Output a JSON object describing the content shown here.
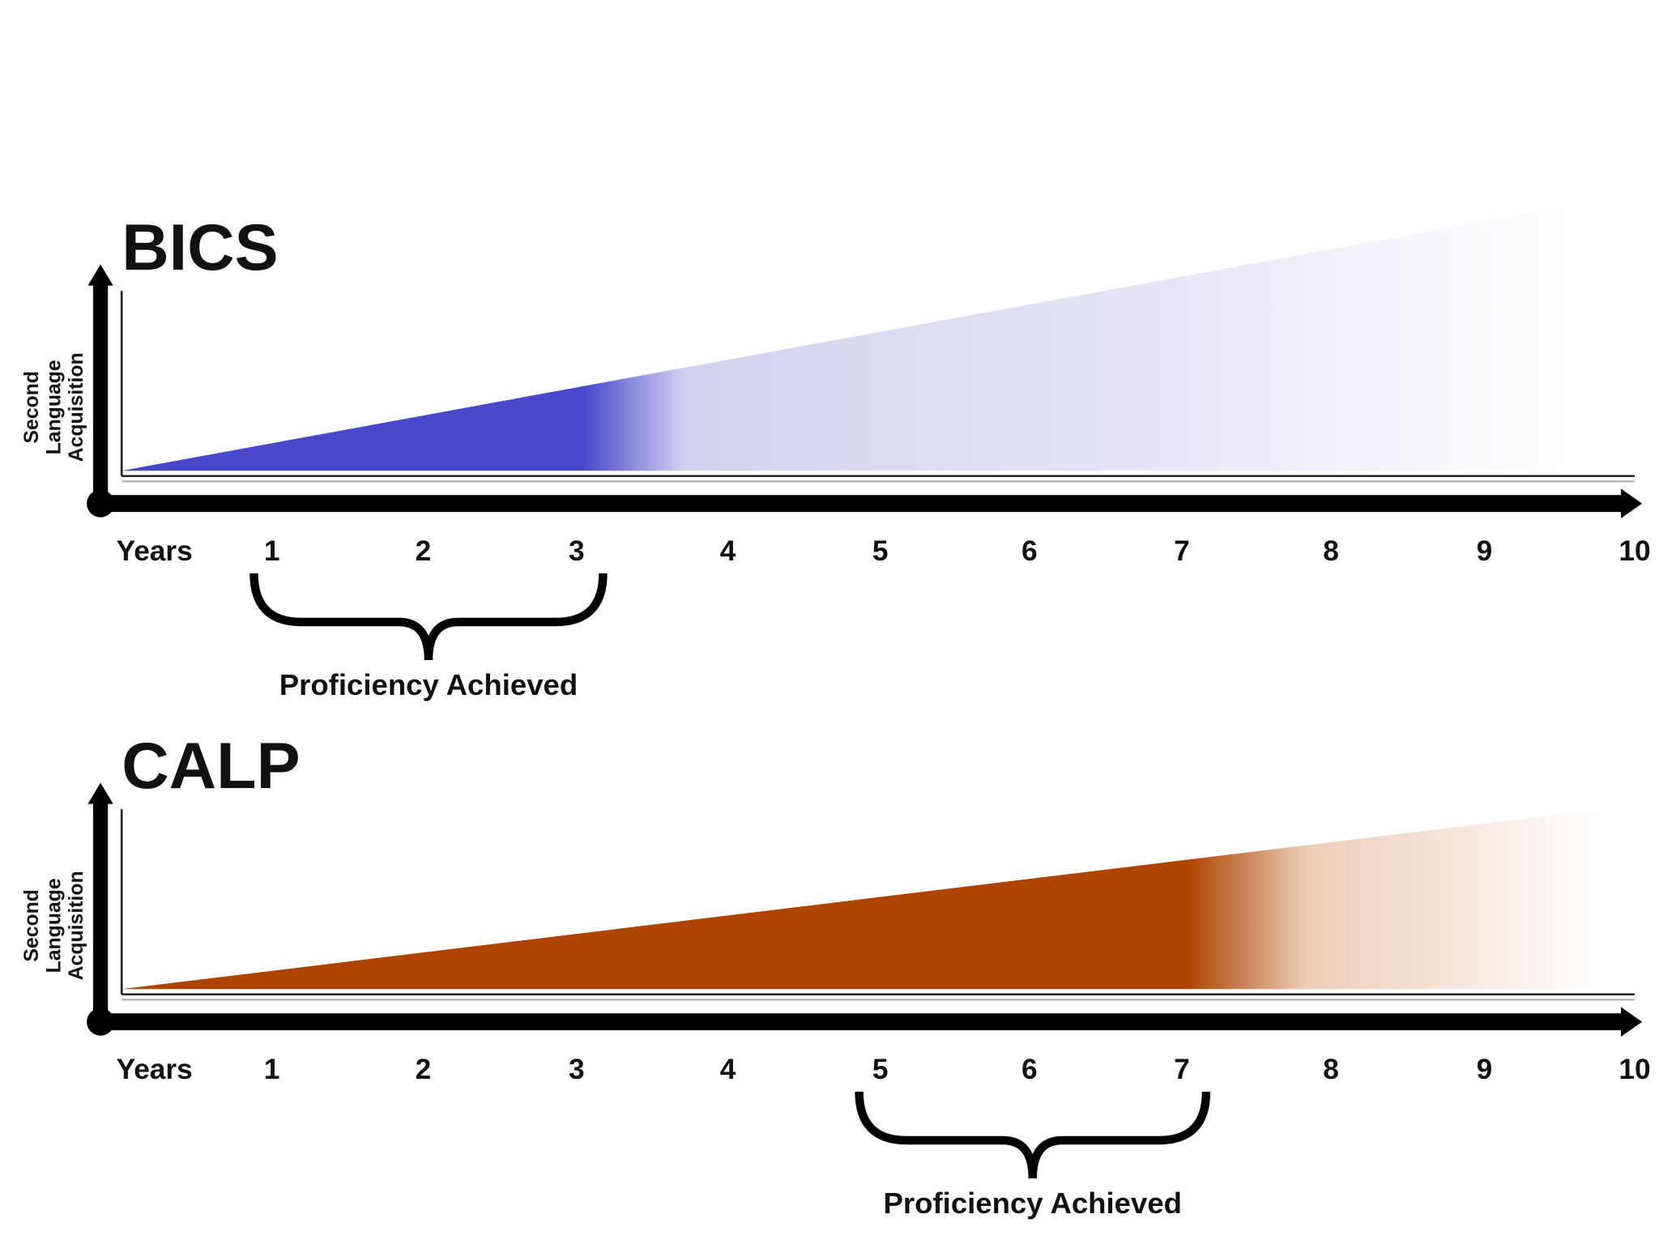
{
  "panels": [
    {
      "title": "BICS",
      "y_label": [
        "Second",
        "Language",
        "Acquisition"
      ],
      "x_label": "Years",
      "ticks": [
        "1",
        "2",
        "3",
        "4",
        "5",
        "6",
        "7",
        "8",
        "9",
        "10"
      ],
      "annotation": "Proficiency Achieved"
    },
    {
      "title": "CALP",
      "y_label": [
        "Second",
        "Language",
        "Acquisition"
      ],
      "x_label": "Years",
      "ticks": [
        "1",
        "2",
        "3",
        "4",
        "5",
        "6",
        "7",
        "8",
        "9",
        "10"
      ],
      "annotation": "Proficiency Achieved"
    }
  ]
}
